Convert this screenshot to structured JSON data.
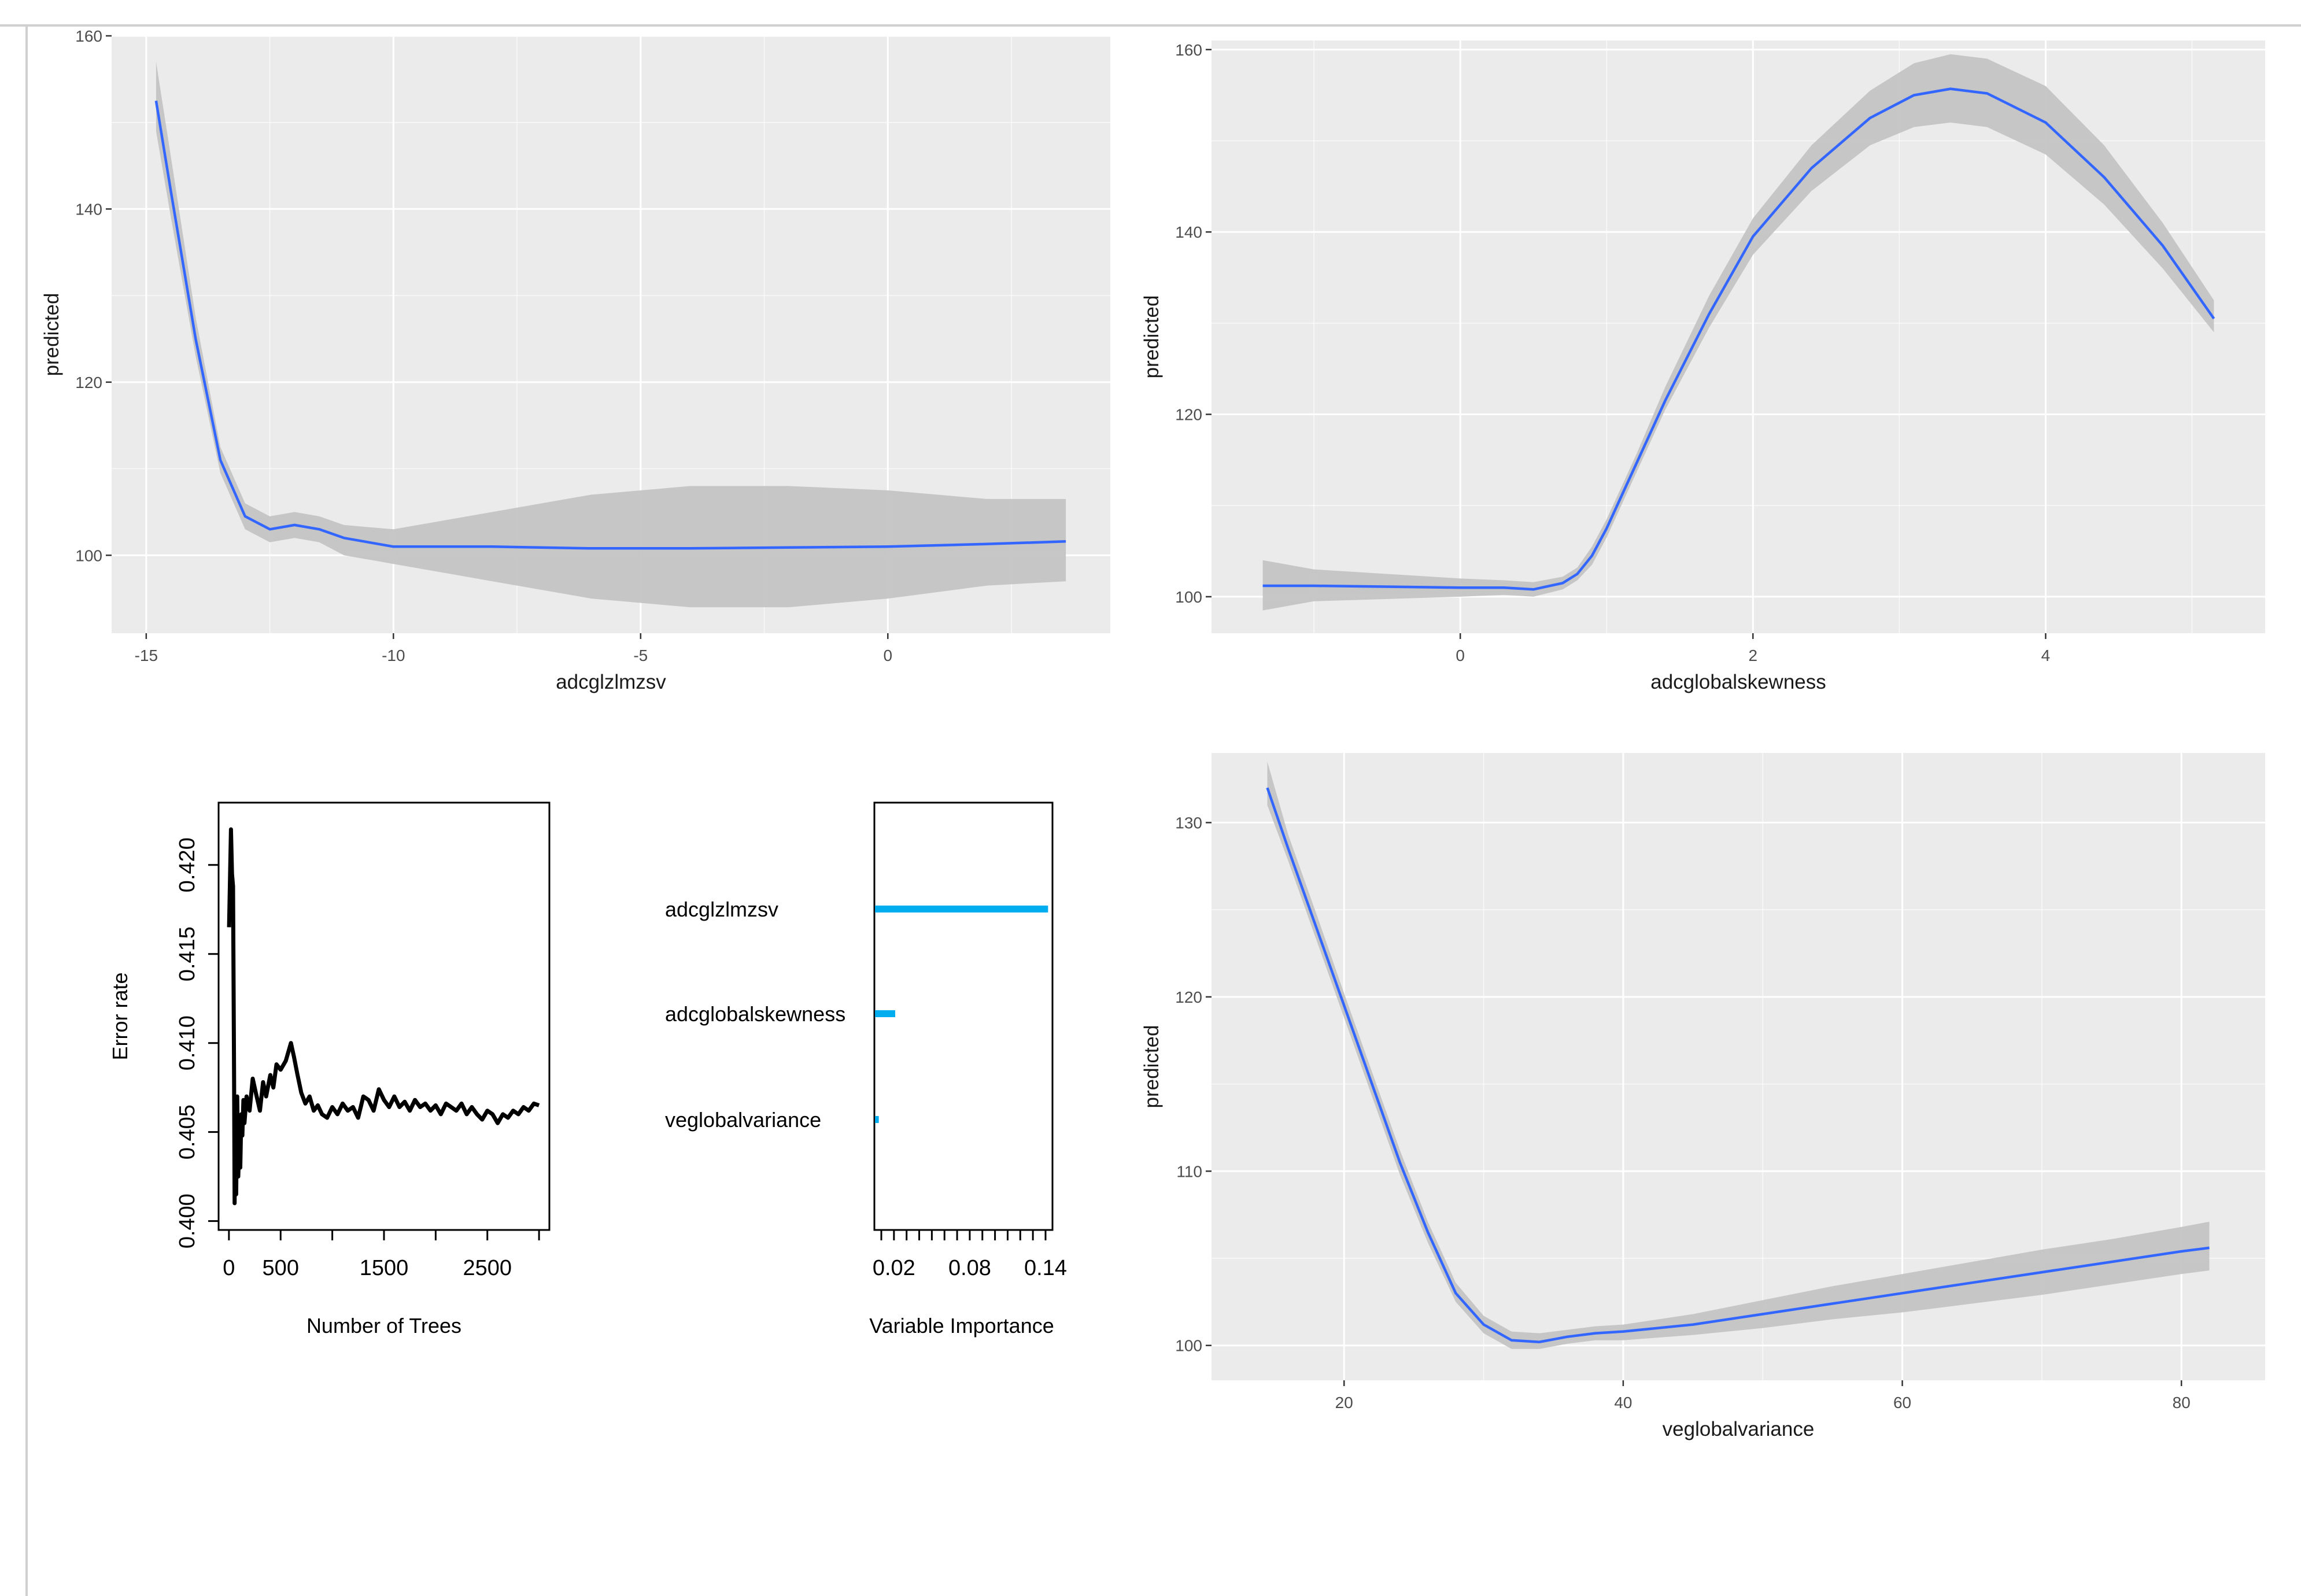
{
  "colors": {
    "panel_bg": "#ebebeb",
    "grid": "#ffffff",
    "line": "#3366ff",
    "ribbon": "#c4c4c4",
    "tick_text": "#4d4d4d",
    "title_text": "#1a1a1a",
    "rf_line": "#000000",
    "importance": "#00aeef"
  },
  "chart_data": [
    {
      "type": "line",
      "name": "pdp-adcglzlmzsv",
      "xlabel": "adcglzlmzsv",
      "ylabel": "predicted",
      "xlim": [
        -15.7,
        4.5
      ],
      "ylim": [
        91,
        160
      ],
      "xticks": [
        -15,
        -10,
        -5,
        0
      ],
      "xtick_labels": [
        "-15",
        "-10",
        "-5",
        "0"
      ],
      "yticks": [
        100,
        120,
        140,
        160
      ],
      "ytick_labels": [
        "100",
        "120",
        "140",
        "160"
      ],
      "x": [
        -14.8,
        -14.5,
        -14.0,
        -13.5,
        -13.0,
        -12.5,
        -12.0,
        -11.5,
        -11.0,
        -10.0,
        -8.0,
        -6.0,
        -4.0,
        -2.0,
        0.0,
        2.0,
        3.6
      ],
      "y": [
        152.5,
        142,
        125,
        111,
        104.5,
        103,
        103.5,
        103,
        102,
        101,
        101,
        100.8,
        100.8,
        100.9,
        101.0,
        101.3,
        101.6
      ],
      "lower": [
        149,
        139,
        123,
        109.5,
        103,
        101.5,
        102,
        101.5,
        100,
        99,
        97,
        95,
        94,
        94,
        95,
        96.5,
        97
      ],
      "upper": [
        157,
        146,
        127.5,
        112.5,
        106,
        104.5,
        105,
        104.5,
        103.5,
        103,
        105,
        107,
        108,
        108,
        107.5,
        106.5,
        106.5
      ]
    },
    {
      "type": "line",
      "name": "pdp-adcglobalskewness",
      "xlabel": "adcglobalskewness",
      "ylabel": "predicted",
      "xlim": [
        -1.7,
        5.5
      ],
      "ylim": [
        96,
        161
      ],
      "xticks": [
        0,
        2,
        4
      ],
      "xtick_labels": [
        "0",
        "2",
        "4"
      ],
      "yticks": [
        100,
        120,
        140,
        160
      ],
      "ytick_labels": [
        "100",
        "120",
        "140",
        "160"
      ],
      "x": [
        -1.35,
        -1.0,
        0.0,
        0.3,
        0.5,
        0.7,
        0.8,
        0.9,
        1.0,
        1.2,
        1.4,
        1.7,
        2.0,
        2.4,
        2.8,
        3.1,
        3.35,
        3.6,
        4.0,
        4.4,
        4.8,
        5.15
      ],
      "y": [
        101.2,
        101.2,
        101.0,
        101.0,
        100.8,
        101.5,
        102.5,
        104.5,
        107.5,
        114.5,
        121.5,
        131,
        139.5,
        147,
        152.5,
        155,
        155.7,
        155.2,
        152,
        146,
        138.5,
        130.5
      ],
      "lower": [
        98.5,
        99.5,
        100.0,
        100.2,
        100.0,
        100.8,
        101.8,
        103.5,
        106.5,
        113.5,
        120.5,
        129.5,
        137.5,
        144.5,
        149.5,
        151.5,
        152,
        151.5,
        148.5,
        143,
        136,
        129
      ],
      "upper": [
        104,
        103,
        102,
        101.8,
        101.6,
        102.2,
        103.2,
        105.5,
        108.5,
        115.5,
        123,
        133,
        141.5,
        149.5,
        155.5,
        158.5,
        159.5,
        159,
        156,
        149.5,
        141,
        132.5
      ]
    },
    {
      "type": "line",
      "name": "rf-error-rate",
      "xlabel": "Number of Trees",
      "ylabel": "Error rate",
      "xlim": [
        -100,
        3100
      ],
      "ylim": [
        0.3995,
        0.4235
      ],
      "xticks": [
        0,
        500,
        1000,
        1500,
        2000,
        2500,
        3000
      ],
      "xtick_labels": [
        "0",
        "500",
        "1500",
        "2500"
      ],
      "xtick_label_values": [
        0,
        500,
        1500,
        2500
      ],
      "yticks": [
        0.4,
        0.405,
        0.41,
        0.415,
        0.42
      ],
      "ytick_labels": [
        "0.400",
        "0.405",
        "0.410",
        "0.415",
        "0.420"
      ],
      "x": [
        1,
        20,
        30,
        40,
        50,
        55,
        60,
        70,
        80,
        90,
        100,
        110,
        120,
        130,
        140,
        150,
        170,
        200,
        230,
        260,
        300,
        330,
        360,
        400,
        430,
        460,
        500,
        550,
        600,
        630,
        660,
        700,
        740,
        780,
        820,
        860,
        900,
        950,
        1000,
        1050,
        1100,
        1150,
        1200,
        1250,
        1300,
        1350,
        1400,
        1450,
        1500,
        1550,
        1600,
        1650,
        1700,
        1750,
        1800,
        1850,
        1900,
        1950,
        2000,
        2050,
        2100,
        2150,
        2200,
        2250,
        2300,
        2350,
        2400,
        2450,
        2500,
        2550,
        2600,
        2650,
        2700,
        2750,
        2800,
        2850,
        2900,
        2950,
        3000
      ],
      "y": [
        0.4165,
        0.422,
        0.4195,
        0.4188,
        0.408,
        0.401,
        0.405,
        0.4015,
        0.407,
        0.4025,
        0.4045,
        0.403,
        0.406,
        0.4048,
        0.4068,
        0.4055,
        0.407,
        0.4062,
        0.408,
        0.4072,
        0.4062,
        0.4078,
        0.407,
        0.4082,
        0.4075,
        0.4088,
        0.4085,
        0.409,
        0.41,
        0.4092,
        0.4083,
        0.4072,
        0.4066,
        0.407,
        0.4062,
        0.4065,
        0.406,
        0.4058,
        0.4064,
        0.406,
        0.4066,
        0.4062,
        0.4064,
        0.4058,
        0.407,
        0.4068,
        0.4062,
        0.4074,
        0.4068,
        0.4064,
        0.407,
        0.4064,
        0.4067,
        0.4062,
        0.4068,
        0.4064,
        0.4066,
        0.4062,
        0.4065,
        0.406,
        0.4066,
        0.4064,
        0.4062,
        0.4066,
        0.406,
        0.4064,
        0.406,
        0.4057,
        0.4062,
        0.406,
        0.4055,
        0.406,
        0.4058,
        0.4062,
        0.406,
        0.4064,
        0.4062,
        0.4066,
        0.4065
      ]
    },
    {
      "type": "bar",
      "name": "variable-importance",
      "xlabel": "Variable Importance",
      "ylabel": "",
      "xlim": [
        0.0045,
        0.1455
      ],
      "xticks": [
        0.01,
        0.02,
        0.03,
        0.04,
        0.05,
        0.06,
        0.07,
        0.08,
        0.09,
        0.1,
        0.11,
        0.12,
        0.13,
        0.14
      ],
      "xtick_labels": [
        "0.02",
        "0.08",
        "0.14"
      ],
      "xtick_label_values": [
        0.02,
        0.08,
        0.14
      ],
      "categories": [
        "adcglzlmzsv",
        "adcglobalskewness",
        "veglobalvariance"
      ],
      "values": [
        0.142,
        0.021,
        0.008
      ],
      "baseline": 0.005
    },
    {
      "type": "line",
      "name": "pdp-veglobalvariance",
      "xlabel": "veglobalvariance",
      "ylabel": "predicted",
      "xlim": [
        10.5,
        86
      ],
      "ylim": [
        98,
        134
      ],
      "xticks": [
        20,
        40,
        60,
        80
      ],
      "xtick_labels": [
        "20",
        "40",
        "60",
        "80"
      ],
      "yticks": [
        100,
        110,
        120,
        130
      ],
      "ytick_labels": [
        "100",
        "110",
        "120",
        "130"
      ],
      "x": [
        14.5,
        16,
        18,
        20,
        22,
        24,
        26,
        28,
        30,
        32,
        34,
        36,
        38,
        40,
        45,
        50,
        55,
        60,
        65,
        70,
        75,
        80,
        82
      ],
      "y": [
        132,
        128.5,
        124,
        119.5,
        115,
        110.5,
        106.5,
        103,
        101.2,
        100.3,
        100.2,
        100.5,
        100.7,
        100.8,
        101.2,
        101.8,
        102.4,
        103,
        103.6,
        104.2,
        104.8,
        105.4,
        105.6
      ],
      "lower": [
        131,
        127.8,
        123.3,
        118.8,
        114.3,
        109.8,
        105.9,
        102.5,
        100.7,
        99.8,
        99.8,
        100.1,
        100.3,
        100.3,
        100.6,
        101.0,
        101.5,
        101.9,
        102.4,
        102.9,
        103.5,
        104.1,
        104.3
      ],
      "upper": [
        133.5,
        129.3,
        124.8,
        120.2,
        115.7,
        111.2,
        107.1,
        103.6,
        101.7,
        100.8,
        100.7,
        100.9,
        101.1,
        101.2,
        101.8,
        102.6,
        103.4,
        104.1,
        104.8,
        105.5,
        106.1,
        106.8,
        107.1
      ]
    }
  ]
}
